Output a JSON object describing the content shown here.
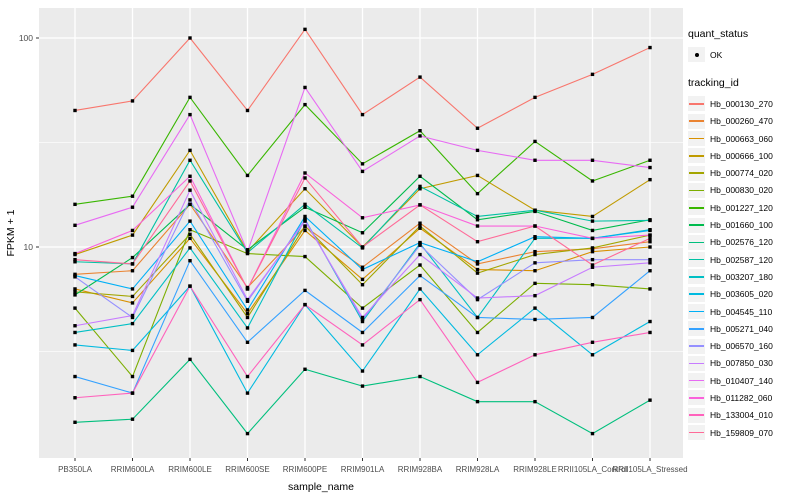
{
  "figure": {
    "ylabel": "FPKM + 1",
    "xlabel": "sample_name",
    "y_tick_labels": [
      "100",
      "10"
    ],
    "panel_color": "#EBEBEB",
    "grid_color": "#FFFFFF",
    "tick_text_color": "#4D4D4D",
    "legend": {
      "quant_status_title": "quant_status",
      "quant_status_items": [
        {
          "label": "OK",
          "marker": "black-point-icon"
        }
      ],
      "tracking_id_title": "tracking_id"
    }
  },
  "chart_data": {
    "type": "line",
    "title": "",
    "xlabel": "sample_name",
    "ylabel": "FPKM + 1",
    "yscale": "log10",
    "ylim": [
      1.0,
      139
    ],
    "y_major_ticks": [
      10,
      100
    ],
    "y_minor_ticks": [
      3.16,
      31.6
    ],
    "grid": true,
    "legend_position": "right",
    "marker": "black point (quant_status = OK)",
    "categories": [
      "PB350LA",
      "RRIM600LA",
      "RRIM600LE",
      "RRIM600SE",
      "RRIM600PE",
      "RRIM901LA",
      "RRIM928BA",
      "RRIM928LA",
      "RRIM928LE",
      "RRII105LA_Control",
      "RRII105LA_Stressed"
    ],
    "series": [
      {
        "name": "Hb_000130_270",
        "color": "#F8766D",
        "values": [
          45,
          50,
          100,
          45,
          110,
          43,
          65,
          37,
          52,
          67,
          90
        ]
      },
      {
        "name": "Hb_000260_470",
        "color": "#EA8331",
        "values": [
          7.4,
          7.7,
          16,
          6.4,
          12.5,
          8.0,
          13,
          8.3,
          9.5,
          9.8,
          10.6
        ]
      },
      {
        "name": "Hb_000663_060",
        "color": "#D89000",
        "values": [
          6.3,
          5.4,
          11,
          4.8,
          12,
          7.0,
          12.3,
          7.8,
          7.7,
          9.5,
          10
        ]
      },
      {
        "name": "Hb_000666_100",
        "color": "#C09B00",
        "values": [
          9.2,
          11.4,
          29,
          9.5,
          19,
          10,
          19,
          22,
          15,
          14,
          21
        ]
      },
      {
        "name": "Hb_000774_020",
        "color": "#A3A500",
        "values": [
          6.1,
          5.8,
          11.5,
          4.6,
          12.6,
          6.6,
          12.6,
          7.5,
          9.2,
          9.9,
          11.4
        ]
      },
      {
        "name": "Hb_000830_020",
        "color": "#7CAE00",
        "values": [
          5.1,
          2.4,
          12.1,
          9.3,
          9.0,
          5.1,
          8.2,
          3.9,
          6.7,
          6.6,
          6.3
        ]
      },
      {
        "name": "Hb_001227_120",
        "color": "#39B600",
        "values": [
          16,
          17.5,
          52,
          22,
          48,
          25,
          36,
          18,
          32,
          20.7,
          26
        ]
      },
      {
        "name": "Hb_001660_100",
        "color": "#00BB4E",
        "values": [
          5.9,
          8.9,
          16,
          9.7,
          15.5,
          11.7,
          21.8,
          13.5,
          14.8,
          12,
          13.5
        ]
      },
      {
        "name": "Hb_002576_120",
        "color": "#00BF7D",
        "values": [
          1.45,
          1.5,
          2.9,
          1.28,
          2.6,
          2.16,
          2.4,
          1.82,
          1.82,
          1.28,
          1.85
        ]
      },
      {
        "name": "Hb_002587_120",
        "color": "#00C1A3",
        "values": [
          8.5,
          8.3,
          26,
          9.4,
          16,
          9.9,
          19.5,
          14,
          15,
          13.3,
          13.4
        ]
      },
      {
        "name": "Hb_003207_180",
        "color": "#00BFC4",
        "values": [
          3.9,
          4.3,
          9.9,
          4.1,
          13.6,
          4.4,
          10.4,
          4.6,
          11,
          11,
          12.1
        ]
      },
      {
        "name": "Hb_003605_020",
        "color": "#00BAE0",
        "values": [
          3.4,
          3.2,
          6.5,
          2.0,
          5.3,
          2.55,
          6.3,
          3.05,
          5.1,
          3.05,
          4.4
        ]
      },
      {
        "name": "Hb_004545_110",
        "color": "#00B0F6",
        "values": [
          7.3,
          6.3,
          13.3,
          5.0,
          14,
          7.8,
          10.5,
          8.5,
          11.2,
          11,
          12
        ]
      },
      {
        "name": "Hb_005271_040",
        "color": "#35A2FF",
        "values": [
          2.4,
          2.0,
          8.6,
          3.5,
          6.2,
          3.9,
          7.3,
          4.6,
          4.5,
          4.6,
          7.7
        ]
      },
      {
        "name": "Hb_006570_160",
        "color": "#9590FF",
        "values": [
          7.2,
          4.6,
          16.8,
          5.5,
          13.5,
          4.5,
          10.2,
          5.6,
          8.4,
          8.7,
          8.7
        ]
      },
      {
        "name": "Hb_007850_030",
        "color": "#C77CFF",
        "values": [
          4.2,
          4.7,
          18.7,
          5.6,
          13.3,
          4.6,
          9.2,
          5.7,
          5.85,
          8.0,
          8.4
        ]
      },
      {
        "name": "Hb_010407_140",
        "color": "#E76BF3",
        "values": [
          12.7,
          15.5,
          43,
          9.5,
          58,
          23,
          34,
          29,
          26,
          26,
          24
        ]
      },
      {
        "name": "Hb_011282_060",
        "color": "#FA62DB",
        "values": [
          9.3,
          12,
          21.8,
          6.3,
          22.6,
          13.8,
          15.9,
          12.6,
          12.6,
          11,
          11.4
        ]
      },
      {
        "name": "Hb_133004_010",
        "color": "#FF62BC",
        "values": [
          1.9,
          2.0,
          6.5,
          2.4,
          5.3,
          3.4,
          5.6,
          2.25,
          3.05,
          3.5,
          3.9
        ]
      },
      {
        "name": "Hb_159809_070",
        "color": "#FF6A98",
        "values": [
          8.7,
          8.3,
          20.7,
          6.3,
          21.4,
          10,
          15.9,
          10.6,
          12.6,
          8.2,
          11
        ]
      }
    ]
  }
}
